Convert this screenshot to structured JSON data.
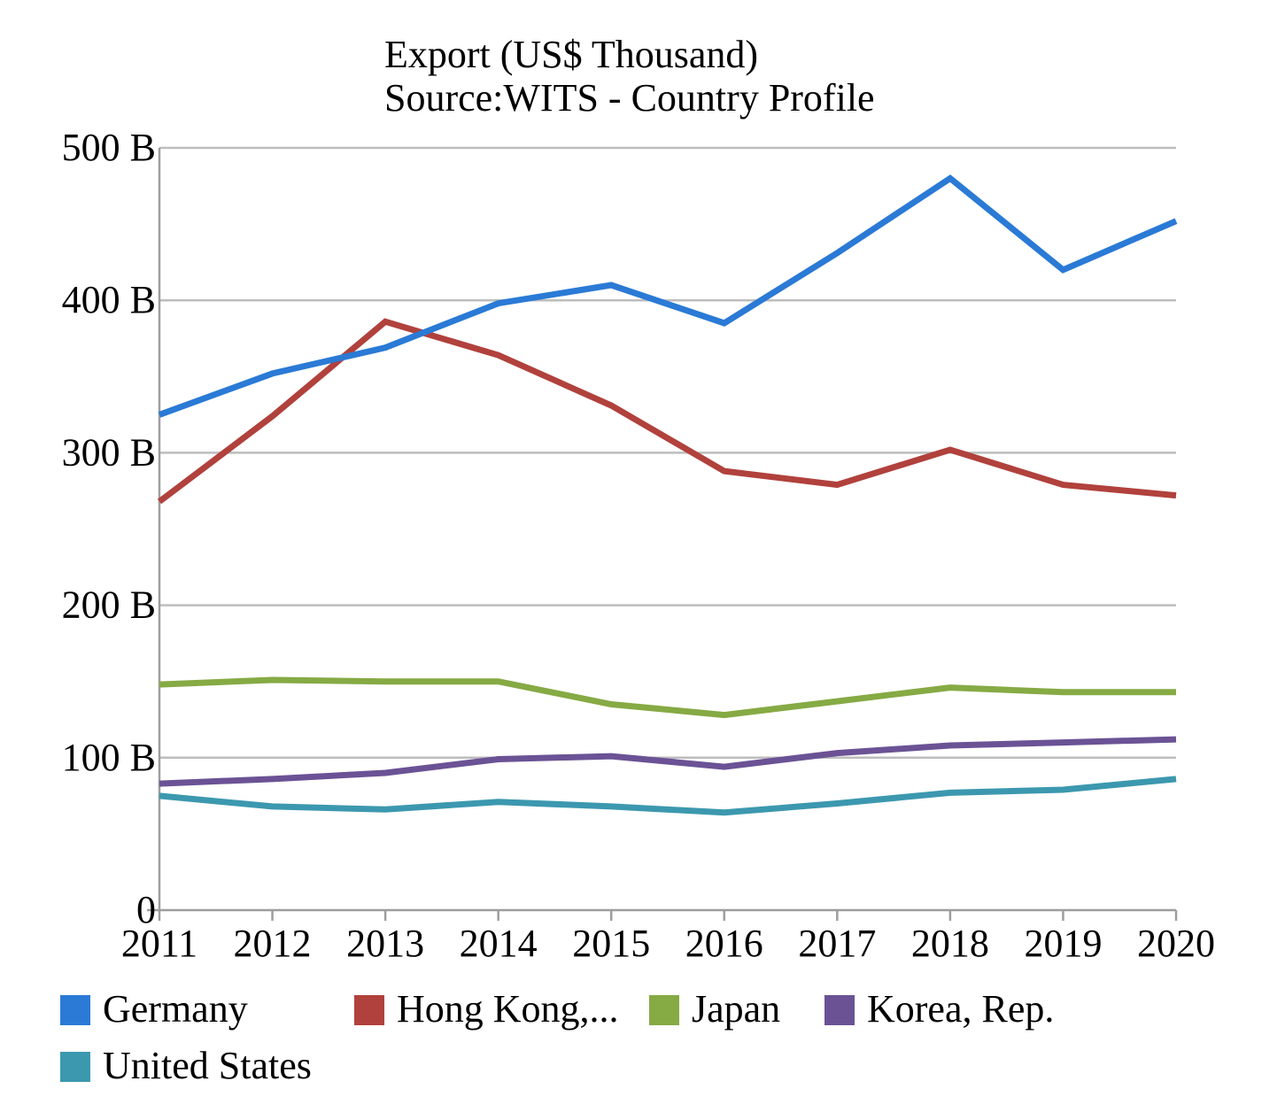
{
  "chart_data": {
    "type": "line",
    "title_lines": [
      "Export (US$ Thousand)",
      "Source:WITS - Country Profile"
    ],
    "x": [
      "2011",
      "2012",
      "2013",
      "2014",
      "2015",
      "2016",
      "2017",
      "2018",
      "2019",
      "2020"
    ],
    "ylim": [
      0,
      500
    ],
    "y_ticks": [
      0,
      100,
      200,
      300,
      400,
      500
    ],
    "y_tick_labels": [
      "0",
      "100 B",
      "200 B",
      "300 B",
      "400 B",
      "500 B"
    ],
    "grid": true,
    "legend_position": "bottom",
    "series": [
      {
        "name": "Germany",
        "color": "#2a7ad6",
        "values": [
          325,
          352,
          369,
          398,
          410,
          385,
          431,
          480,
          420,
          452
        ]
      },
      {
        "name": "Hong Kong,...",
        "color": "#b1413c",
        "values": [
          268,
          324,
          386,
          364,
          331,
          288,
          279,
          302,
          279,
          272
        ]
      },
      {
        "name": "Japan",
        "color": "#86aa44",
        "values": [
          148,
          151,
          150,
          150,
          135,
          128,
          137,
          146,
          143,
          143
        ]
      },
      {
        "name": "Korea, Rep.",
        "color": "#6b5295",
        "values": [
          83,
          86,
          90,
          99,
          101,
          94,
          103,
          108,
          110,
          112
        ]
      },
      {
        "name": "United States",
        "color": "#3c98af",
        "values": [
          75,
          68,
          66,
          71,
          68,
          64,
          70,
          77,
          79,
          86
        ]
      }
    ]
  }
}
